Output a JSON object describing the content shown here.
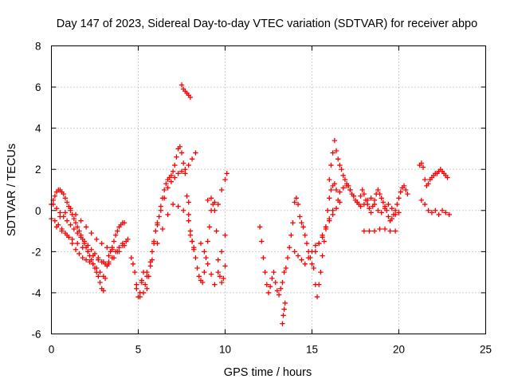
{
  "chart_data": {
    "type": "scatter",
    "title": "Day 147 of 2023, Sidereal Day-to-day VTEC variation (SDTVAR) for receiver abpo",
    "xlabel": "GPS time / hours",
    "ylabel": "SDTVAR / TECUs",
    "xlim": [
      0,
      25
    ],
    "ylim": [
      -6,
      8
    ],
    "x_ticks": [
      "0",
      "5",
      "10",
      "15",
      "20",
      "25"
    ],
    "y_ticks": [
      "-6",
      "-4",
      "-2",
      "0",
      "2",
      "4",
      "6",
      "8"
    ],
    "grid": true,
    "marker": "plus",
    "series_color": "#ff0000",
    "series": [
      {
        "name": "SDTVAR",
        "x": [
          0.0,
          0.1,
          0.2,
          0.3,
          0.4,
          0.5,
          0.6,
          0.7,
          0.8,
          0.9,
          1.0,
          1.1,
          1.2,
          1.3,
          1.4,
          1.5,
          1.6,
          1.7,
          1.8,
          1.9,
          2.0,
          2.1,
          2.2,
          2.3,
          2.4,
          2.5,
          2.6,
          2.7,
          2.8,
          2.9,
          3.0,
          3.1,
          3.2,
          3.3,
          3.4,
          3.5,
          3.6,
          3.7,
          3.8,
          3.9,
          4.0,
          4.1,
          4.2,
          0.0,
          0.2,
          0.4,
          0.6,
          0.8,
          1.0,
          1.2,
          1.4,
          1.6,
          1.8,
          2.0,
          2.2,
          2.4,
          2.6,
          2.8,
          3.0,
          0.1,
          0.3,
          0.5,
          0.7,
          0.9,
          1.1,
          1.3,
          1.5,
          1.7,
          1.9,
          2.1,
          2.3,
          2.5,
          2.7,
          2.9,
          3.1,
          3.3,
          3.5,
          3.7,
          3.9,
          4.1,
          4.3,
          0.5,
          0.8,
          1.1,
          1.4,
          1.7,
          2.0,
          2.3,
          2.6,
          2.9,
          3.2,
          3.5,
          3.8,
          4.1,
          4.4,
          0.3,
          0.6,
          0.9,
          1.2,
          1.5,
          1.8,
          2.1,
          2.4,
          2.7,
          3.0,
          3.3,
          3.6,
          3.9,
          4.2,
          4.6,
          4.7,
          4.8,
          4.9,
          5.0,
          5.1,
          5.2,
          5.3,
          5.4,
          5.5,
          5.6,
          5.7,
          5.8,
          5.9,
          6.0,
          6.1,
          6.2,
          6.3,
          6.4,
          6.5,
          6.6,
          6.7,
          6.8,
          6.9,
          7.0,
          7.1,
          7.2,
          7.3,
          7.4,
          7.5,
          7.6,
          7.7,
          7.8,
          7.9,
          8.0,
          8.1,
          8.2,
          4.9,
          5.1,
          5.3,
          5.5,
          5.7,
          5.9,
          6.1,
          6.3,
          6.5,
          6.7,
          6.9,
          7.1,
          7.3,
          7.5,
          7.7,
          7.9,
          8.1,
          8.3,
          5.2,
          5.5,
          5.8,
          6.1,
          6.4,
          6.7,
          7.0,
          7.3,
          7.6,
          7.9,
          7.5,
          7.6,
          7.7,
          7.8,
          7.9,
          8.0,
          7.9,
          8.0,
          8.1,
          8.2,
          8.3,
          8.4,
          8.5,
          8.6,
          8.7,
          8.8,
          8.9,
          9.0,
          9.1,
          9.2,
          9.3,
          9.4,
          9.5,
          9.6,
          9.7,
          9.8,
          9.9,
          10.0,
          8.6,
          8.8,
          9.0,
          9.2,
          9.4,
          9.6,
          9.8,
          10.0,
          9.0,
          9.2,
          9.4,
          9.6,
          9.8,
          10.0,
          10.1,
          12.0,
          12.1,
          12.2,
          12.3,
          12.4,
          12.5,
          12.6,
          12.7,
          12.8,
          12.9,
          13.0,
          13.1,
          13.2,
          13.3,
          13.4,
          13.5,
          13.6,
          13.7,
          13.8,
          13.9,
          14.0,
          14.1,
          14.2,
          14.3,
          14.4,
          14.5,
          14.6,
          14.7,
          14.8,
          14.9,
          15.0,
          15.1,
          15.2,
          15.3,
          15.4,
          15.5,
          15.6,
          15.7,
          15.8,
          15.9,
          16.0,
          16.1,
          16.2,
          16.3,
          16.4,
          16.5,
          13.3,
          13.35,
          13.4,
          13.45,
          14.0,
          14.2,
          14.4,
          14.6,
          14.8,
          15.0,
          15.2,
          15.4,
          15.6,
          15.8,
          16.0,
          16.2,
          16.4,
          16.6,
          15.2,
          15.4,
          15.6,
          15.8,
          16.0,
          16.2,
          16.0,
          16.1,
          16.2,
          16.3,
          16.4,
          16.5,
          16.6,
          16.7,
          16.8,
          16.9,
          17.0,
          17.1,
          17.2,
          17.3,
          17.4,
          17.5,
          17.6,
          17.7,
          17.8,
          17.9,
          18.0,
          18.1,
          18.2,
          18.3,
          18.4,
          18.5,
          18.6,
          18.7,
          18.8,
          18.9,
          19.0,
          19.1,
          19.2,
          19.3,
          19.4,
          19.5,
          19.6,
          19.7,
          19.8,
          19.9,
          20.0,
          20.1,
          20.2,
          20.3,
          20.4,
          20.5,
          16.6,
          16.8,
          17.0,
          17.2,
          17.4,
          17.6,
          17.8,
          18.0,
          18.2,
          18.4,
          18.6,
          18.8,
          19.0,
          19.2,
          19.4,
          19.6,
          19.8,
          20.0,
          18.0,
          18.3,
          18.6,
          18.9,
          19.2,
          19.5,
          19.8,
          21.2,
          21.3,
          21.4,
          21.5,
          21.6,
          21.7,
          21.8,
          21.9,
          22.0,
          22.1,
          22.2,
          22.3,
          22.4,
          22.5,
          22.6,
          22.7,
          22.8,
          21.3,
          21.5,
          21.7,
          21.9,
          22.1,
          22.3,
          22.5,
          22.7,
          22.9
        ],
        "y": [
          0.3,
          0.5,
          0.7,
          0.9,
          1.0,
          1.0,
          0.9,
          0.8,
          0.6,
          0.4,
          0.2,
          0.0,
          -0.2,
          -0.4,
          -0.6,
          -0.8,
          -1.0,
          -1.2,
          -1.4,
          -1.6,
          -1.8,
          -2.0,
          -2.2,
          -2.4,
          -2.6,
          -2.8,
          -3.0,
          -3.2,
          -3.5,
          -3.8,
          -3.9,
          -3.3,
          -2.7,
          -2.2,
          -2.0,
          -1.8,
          -1.5,
          -1.2,
          -1.0,
          -0.8,
          -0.7,
          -0.6,
          -0.6,
          -0.4,
          -0.5,
          -0.7,
          -0.9,
          -1.1,
          -1.3,
          -1.6,
          -1.9,
          -2.1,
          -2.3,
          -2.4,
          -2.5,
          -2.6,
          -2.8,
          -3.0,
          -3.2,
          0.3,
          0.1,
          -0.1,
          -0.3,
          -0.5,
          -0.7,
          -0.9,
          -1.1,
          -1.3,
          -1.5,
          -1.7,
          -1.9,
          -2.1,
          -2.3,
          -2.5,
          -2.6,
          -2.5,
          -2.3,
          -2.0,
          -1.8,
          -1.6,
          -1.5,
          -0.3,
          -0.1,
          0.1,
          -0.2,
          -0.5,
          -0.8,
          -1.1,
          -1.4,
          -1.6,
          -1.8,
          -1.9,
          -2.0,
          -1.7,
          -1.4,
          -0.8,
          -1.0,
          -1.2,
          -1.4,
          -1.6,
          -1.8,
          -2.0,
          -2.2,
          -2.4,
          -2.5,
          -2.6,
          -2.3,
          -2.0,
          -1.7,
          -2.3,
          -2.6,
          -3.0,
          -3.6,
          -4.2,
          -4.0,
          -3.5,
          -3.0,
          -3.6,
          -3.8,
          -3.2,
          -2.7,
          -2.0,
          -1.5,
          -1.0,
          -0.6,
          -0.3,
          0.2,
          0.6,
          1.0,
          1.3,
          1.5,
          1.6,
          1.7,
          1.9,
          2.2,
          2.6,
          3.0,
          3.1,
          2.8,
          2.3,
          1.8,
          0.7,
          0.4,
          -1.2,
          -1.5,
          -1.8,
          -3.8,
          -4.2,
          -4.0,
          -3.2,
          -2.5,
          -1.6,
          -0.7,
          0.0,
          0.6,
          1.1,
          1.4,
          1.6,
          1.8,
          1.9,
          2.0,
          2.2,
          2.5,
          2.8,
          -3.4,
          -3.0,
          -2.4,
          -1.6,
          -0.9,
          -0.2,
          0.3,
          0.2,
          0.0,
          -0.2,
          6.1,
          5.9,
          5.8,
          5.7,
          5.6,
          5.5,
          -0.5,
          -1.0,
          -1.5,
          -1.9,
          -2.3,
          -2.8,
          -3.2,
          -3.4,
          -3.5,
          -3.0,
          -2.3,
          -1.5,
          -0.8,
          0.0,
          0.3,
          0.0,
          -1.0,
          -2.4,
          -3.2,
          -3.5,
          -3.3,
          -2.7,
          -1.6,
          -2.0,
          -2.6,
          -3.1,
          -3.6,
          -3.0,
          -2.0,
          -1.2,
          0.5,
          0.6,
          0.4,
          0.3,
          1.0,
          1.5,
          1.8,
          -0.8,
          -1.5,
          -2.3,
          -3.0,
          -3.6,
          -4.0,
          -3.7,
          -3.3,
          -3.0,
          -3.5,
          -3.9,
          -4.1,
          -3.8,
          -3.5,
          -3.0,
          -2.8,
          -2.3,
          -1.8,
          -1.2,
          -0.6,
          0.4,
          0.6,
          0.3,
          -0.3,
          -0.6,
          -0.8,
          -1.2,
          -1.6,
          -2.0,
          -2.3,
          -2.6,
          -2.8,
          -3.6,
          -4.2,
          -3.6,
          -3.0,
          -2.2,
          -1.5,
          -0.8,
          0.0,
          0.6,
          1.0,
          1.2,
          1.3,
          1.0,
          0.5,
          -5.5,
          -5.1,
          -4.8,
          -4.5,
          -2.0,
          -2.2,
          -2.4,
          -2.6,
          -2.3,
          -2.0,
          -1.7,
          -1.6,
          -1.3,
          -0.9,
          -0.5,
          -0.2,
          0.1,
          0.4,
          -2.0,
          -1.6,
          -1.2,
          -0.8,
          -0.4,
          0.0,
          1.5,
          2.2,
          2.8,
          3.4,
          2.9,
          2.5,
          2.2,
          2.0,
          1.7,
          1.5,
          1.3,
          1.2,
          1.0,
          0.8,
          0.7,
          0.5,
          0.4,
          0.3,
          0.7,
          1.0,
          0.8,
          0.5,
          0.3,
          0.1,
          -0.1,
          0.2,
          0.5,
          0.8,
          1.0,
          0.8,
          0.6,
          0.4,
          0.2,
          0.0,
          -0.3,
          -0.5,
          -0.4,
          -0.2,
          0.0,
          0.3,
          0.6,
          0.9,
          1.1,
          1.2,
          1.0,
          0.8,
          0.9,
          1.1,
          1.2,
          1.0,
          0.7,
          0.4,
          0.2,
          0.3,
          0.5,
          0.6,
          0.3,
          0.0,
          -0.1,
          0.1,
          0.3,
          0.1,
          -0.2,
          -0.1,
          -1.0,
          -1.0,
          -1.0,
          -0.9,
          -0.9,
          -1.0,
          -1.0,
          2.2,
          2.3,
          2.1,
          1.5,
          1.2,
          1.3,
          1.5,
          1.6,
          1.7,
          1.8,
          1.8,
          1.9,
          2.0,
          1.9,
          1.8,
          1.7,
          1.6,
          0.5,
          0.3,
          0.0,
          -0.1,
          0.0,
          -0.2,
          0.0,
          -0.1,
          -0.2
        ]
      }
    ]
  }
}
